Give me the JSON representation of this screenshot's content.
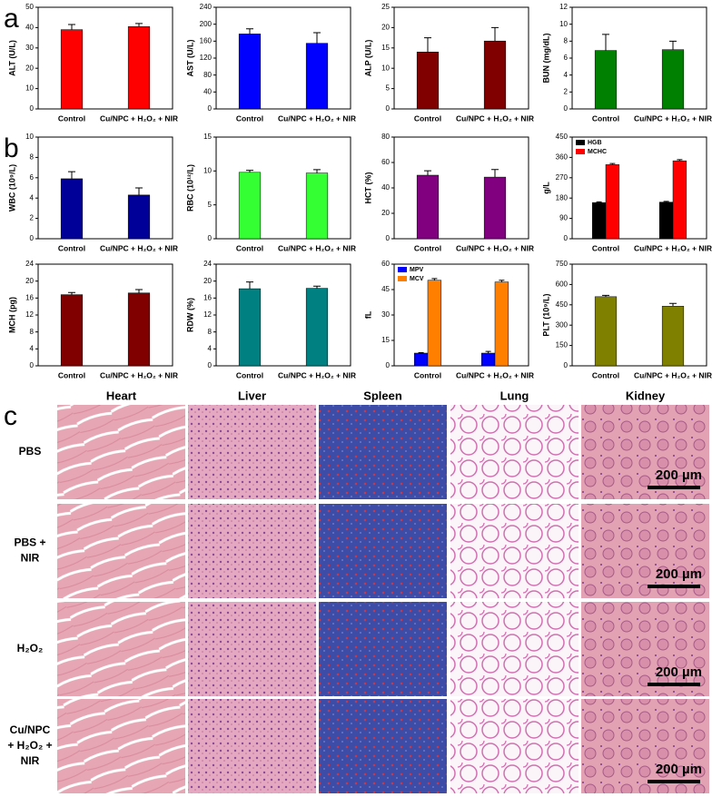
{
  "panel_labels": [
    "a",
    "b",
    "c"
  ],
  "chart_data": [
    {
      "type": "bar",
      "ylabel": "ALT (U/L)",
      "categories": [
        "Control",
        "Cu/NPC + H₂O₂ + NIR"
      ],
      "values": [
        39,
        40.5
      ],
      "errors": [
        2.5,
        1.5
      ],
      "color": "#ff0000",
      "ylim": [
        0,
        50
      ],
      "yticks": [
        0,
        10,
        20,
        30,
        40,
        50
      ]
    },
    {
      "type": "bar",
      "ylabel": "AST (U/L)",
      "categories": [
        "Control",
        "Cu/NPC + H₂O₂ + NIR"
      ],
      "values": [
        177,
        155
      ],
      "errors": [
        12,
        25
      ],
      "color": "#0000ff",
      "ylim": [
        0,
        240
      ],
      "yticks": [
        0,
        40,
        80,
        120,
        160,
        200,
        240
      ]
    },
    {
      "type": "bar",
      "ylabel": "ALP (U/L)",
      "categories": [
        "Control",
        "Cu/NPC + H₂O₂ + NIR"
      ],
      "values": [
        14,
        16.7
      ],
      "errors": [
        3.5,
        3.3
      ],
      "color": "#800000",
      "ylim": [
        0,
        25
      ],
      "yticks": [
        0,
        5,
        10,
        15,
        20,
        25
      ]
    },
    {
      "type": "bar",
      "ylabel": "BUN (mg/dL)",
      "categories": [
        "Control",
        "Cu/NPC + H₂O₂ + NIR"
      ],
      "values": [
        6.9,
        7.0
      ],
      "errors": [
        1.9,
        1.0
      ],
      "color": "#008000",
      "ylim": [
        0,
        12
      ],
      "yticks": [
        0,
        2,
        4,
        6,
        8,
        10,
        12
      ]
    },
    {
      "type": "bar",
      "ylabel": "WBC (10⁹/L)",
      "categories": [
        "Control",
        "Cu/NPC + H₂O₂ + NIR"
      ],
      "values": [
        5.9,
        4.3
      ],
      "errors": [
        0.7,
        0.7
      ],
      "color": "#000099",
      "ylim": [
        0,
        10
      ],
      "yticks": [
        0,
        2,
        4,
        6,
        8,
        10
      ]
    },
    {
      "type": "bar",
      "ylabel": "RBC (10¹²/L)",
      "categories": [
        "Control",
        "Cu/NPC + H₂O₂ + NIR"
      ],
      "values": [
        9.8,
        9.7
      ],
      "errors": [
        0.3,
        0.5
      ],
      "color": "#33ff33",
      "ylim": [
        0,
        15
      ],
      "yticks": [
        0,
        5,
        10,
        15
      ]
    },
    {
      "type": "bar",
      "ylabel": "HCT (%)",
      "categories": [
        "Control",
        "Cu/NPC + H₂O₂ + NIR"
      ],
      "values": [
        50,
        48.5
      ],
      "errors": [
        3.5,
        6
      ],
      "color": "#800080",
      "ylim": [
        0,
        80
      ],
      "yticks": [
        0,
        20,
        40,
        60,
        80
      ]
    },
    {
      "type": "grouped_bar",
      "ylabel": "g/L",
      "categories": [
        "Control",
        "Cu/NPC + H₂O₂ + NIR"
      ],
      "legend": "top-left",
      "series": [
        {
          "name": "HGB",
          "color": "#000000",
          "values": [
            160,
            162
          ],
          "errors": [
            3,
            3
          ]
        },
        {
          "name": "MCHC",
          "color": "#ff0000",
          "values": [
            328,
            345
          ],
          "errors": [
            5,
            5
          ]
        }
      ],
      "ylim": [
        0,
        450
      ],
      "yticks": [
        0,
        90,
        180,
        270,
        360,
        450
      ]
    },
    {
      "type": "bar",
      "ylabel": "MCH (pg)",
      "categories": [
        "Control",
        "Cu/NPC + H₂O₂ + NIR"
      ],
      "values": [
        16.8,
        17.2
      ],
      "errors": [
        0.5,
        0.8
      ],
      "color": "#800000",
      "ylim": [
        0,
        24
      ],
      "yticks": [
        0,
        4,
        8,
        12,
        16,
        20,
        24
      ]
    },
    {
      "type": "bar",
      "ylabel": "RDW (%)",
      "categories": [
        "Control",
        "Cu/NPC + H₂O₂ + NIR"
      ],
      "values": [
        18.2,
        18.3
      ],
      "errors": [
        1.6,
        0.5
      ],
      "color": "#008080",
      "ylim": [
        0,
        24
      ],
      "yticks": [
        0,
        4,
        8,
        12,
        16,
        20,
        24
      ]
    },
    {
      "type": "grouped_bar",
      "ylabel": "fL",
      "categories": [
        "Control",
        "Cu/NPC + H₂O₂ + NIR"
      ],
      "legend": "top-left",
      "series": [
        {
          "name": "MPV",
          "color": "#0000ff",
          "values": [
            7.5,
            7.5
          ],
          "errors": [
            0.3,
            1
          ]
        },
        {
          "name": "MCV",
          "color": "#ff8000",
          "values": [
            50.5,
            49.5
          ],
          "errors": [
            1,
            1
          ]
        }
      ],
      "ylim": [
        0,
        60
      ],
      "yticks": [
        0,
        15,
        30,
        45,
        60
      ]
    },
    {
      "type": "bar",
      "ylabel": "PLT (10⁹/L)",
      "categories": [
        "Control",
        "Cu/NPC + H₂O₂ + NIR"
      ],
      "values": [
        510,
        440
      ],
      "errors": [
        10,
        20
      ],
      "color": "#808000",
      "ylim": [
        0,
        750
      ],
      "yticks": [
        0,
        150,
        300,
        450,
        600,
        750
      ]
    }
  ],
  "histology": {
    "columns": [
      "Heart",
      "Liver",
      "Spleen",
      "Lung",
      "Kidney"
    ],
    "rows": [
      [
        "PBS"
      ],
      [
        "PBS +",
        "NIR"
      ],
      [
        "H₂O₂"
      ],
      [
        "Cu/NPC",
        "+ H₂O₂ +",
        "NIR"
      ]
    ],
    "scale_bar": "200 µm"
  }
}
